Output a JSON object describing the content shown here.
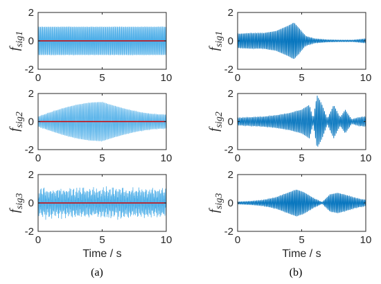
{
  "captions": {
    "a": "(a)",
    "b": "(b)"
  },
  "signal_color": "#0072BD",
  "signal_color_light": "#4DAEE8",
  "reference_color": "#D00000",
  "chart_data": [
    {
      "id": "a1",
      "type": "line",
      "column": "a",
      "row": 1,
      "ylabel_main": "f",
      "ylabel_sub": "sig1",
      "xlabel": "",
      "xlim": [
        0,
        10
      ],
      "ylim": [
        -2,
        2
      ],
      "xticks": [
        "0",
        "5",
        "10"
      ],
      "yticks": [
        "2",
        "0",
        "-2"
      ],
      "series": [
        {
          "style": "oscillation",
          "envelope": "constant",
          "amplitude": 1.0,
          "cycles": 120
        },
        {
          "style": "reference",
          "values": [
            0,
            0
          ]
        }
      ]
    },
    {
      "id": "a2",
      "type": "line",
      "column": "a",
      "row": 2,
      "ylabel_main": "f",
      "ylabel_sub": "sig2",
      "xlabel": "",
      "xlim": [
        0,
        10
      ],
      "ylim": [
        -2,
        2
      ],
      "xticks": [
        "0",
        "5",
        "10"
      ],
      "yticks": [
        "2",
        "0",
        "-2"
      ],
      "series": [
        {
          "style": "oscillation",
          "envelope": "bell",
          "amplitude_start": 0.35,
          "amplitude_peak": 1.4,
          "peak_at": 5.0,
          "amplitude_end": 0.5,
          "cycles": 100
        },
        {
          "style": "reference",
          "values": [
            0,
            0
          ]
        }
      ]
    },
    {
      "id": "a3",
      "type": "line",
      "column": "a",
      "row": 3,
      "ylabel_main": "f",
      "ylabel_sub": "sig3",
      "xlabel": "Time / s",
      "xlim": [
        0,
        10
      ],
      "ylim": [
        -2,
        2
      ],
      "xticks": [
        "0",
        "5",
        "10"
      ],
      "yticks": [
        "2",
        "0",
        "-2"
      ],
      "series": [
        {
          "style": "oscillation",
          "envelope": "constant",
          "amplitude": 1.0,
          "cycles": 130,
          "noise": true
        },
        {
          "style": "reference",
          "values": [
            0,
            0
          ]
        }
      ]
    },
    {
      "id": "b1",
      "type": "line",
      "column": "b",
      "row": 1,
      "ylabel_main": "f",
      "ylabel_sub": "sig1",
      "xlabel": "",
      "xlim": [
        0,
        10
      ],
      "ylim": [
        -2,
        2
      ],
      "xticks": [
        "0",
        "5",
        "10"
      ],
      "yticks": [
        "2",
        "0",
        "-2"
      ],
      "series": [
        {
          "style": "oscillation",
          "envelope": "points",
          "envelope_points": [
            [
              0,
              0.5
            ],
            [
              1,
              0.55
            ],
            [
              2,
              0.55
            ],
            [
              3,
              0.7
            ],
            [
              4,
              1.1
            ],
            [
              4.4,
              1.3
            ],
            [
              4.8,
              0.9
            ],
            [
              5.3,
              0.35
            ],
            [
              6,
              0.15
            ],
            [
              7,
              0.08
            ],
            [
              8,
              0.06
            ],
            [
              9,
              0.06
            ],
            [
              10,
              0.15
            ]
          ],
          "cycles": 110
        }
      ]
    },
    {
      "id": "b2",
      "type": "line",
      "column": "b",
      "row": 2,
      "ylabel_main": "f",
      "ylabel_sub": "sig2",
      "xlabel": "",
      "xlim": [
        0,
        10
      ],
      "ylim": [
        -2,
        2
      ],
      "xticks": [
        "0",
        "5",
        "10"
      ],
      "yticks": [
        "2",
        "0",
        "-2"
      ],
      "series": [
        {
          "style": "oscillation",
          "envelope": "points",
          "envelope_points": [
            [
              0,
              0.25
            ],
            [
              1,
              0.3
            ],
            [
              2,
              0.35
            ],
            [
              3,
              0.45
            ],
            [
              4,
              0.6
            ],
            [
              5,
              0.85
            ],
            [
              5.6,
              1.2
            ],
            [
              5.9,
              0.2
            ],
            [
              6.2,
              1.9
            ],
            [
              6.6,
              1.2
            ],
            [
              7.0,
              0.2
            ],
            [
              7.5,
              1.2
            ],
            [
              8.0,
              0.3
            ],
            [
              8.4,
              0.85
            ],
            [
              8.9,
              0.15
            ],
            [
              9.5,
              0.3
            ],
            [
              10,
              0.35
            ]
          ],
          "cycles": 105
        }
      ]
    },
    {
      "id": "b3",
      "type": "line",
      "column": "b",
      "row": 3,
      "ylabel_main": "f",
      "ylabel_sub": "sig3",
      "xlabel": "Time / s",
      "xlim": [
        0,
        10
      ],
      "ylim": [
        -2,
        2
      ],
      "xticks": [
        "0",
        "5",
        "10"
      ],
      "yticks": [
        "2",
        "0",
        "-2"
      ],
      "series": [
        {
          "style": "oscillation",
          "envelope": "points",
          "envelope_points": [
            [
              0,
              0.08
            ],
            [
              1,
              0.12
            ],
            [
              2,
              0.2
            ],
            [
              3,
              0.4
            ],
            [
              4,
              0.75
            ],
            [
              4.6,
              0.95
            ],
            [
              5.2,
              0.75
            ],
            [
              6,
              0.3
            ],
            [
              6.6,
              0.05
            ],
            [
              7.2,
              0.6
            ],
            [
              7.8,
              0.72
            ],
            [
              8.5,
              0.55
            ],
            [
              9.2,
              0.35
            ],
            [
              10,
              0.2
            ]
          ],
          "cycles": 110
        }
      ]
    }
  ]
}
